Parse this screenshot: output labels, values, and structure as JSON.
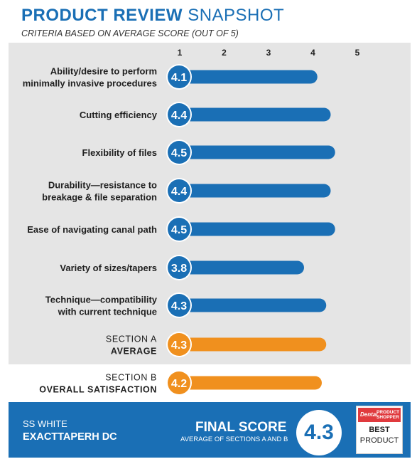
{
  "header": {
    "title_bold": "PRODUCT REVIEW",
    "title_light": "SNAPSHOT",
    "subtitle": "CRITERIA BASED ON AVERAGE SCORE (OUT OF 5)"
  },
  "chart_data": {
    "type": "bar",
    "orientation": "horizontal",
    "xlim": [
      0,
      5
    ],
    "ticks": [
      "1",
      "2",
      "3",
      "4",
      "5"
    ],
    "rows": [
      {
        "label_lines": [
          "Ability/desire to perform",
          "minimally invasive procedures"
        ],
        "value": 4.1,
        "value_label": "4.1",
        "group": "criteria"
      },
      {
        "label_lines": [
          "Cutting efficiency"
        ],
        "value": 4.4,
        "value_label": "4.4",
        "group": "criteria"
      },
      {
        "label_lines": [
          "Flexibility of files"
        ],
        "value": 4.5,
        "value_label": "4.5",
        "group": "criteria"
      },
      {
        "label_lines": [
          "Durability—resistance to",
          "breakage & file separation"
        ],
        "value": 4.4,
        "value_label": "4.4",
        "group": "criteria"
      },
      {
        "label_lines": [
          "Ease of navigating canal path"
        ],
        "value": 4.5,
        "value_label": "4.5",
        "group": "criteria"
      },
      {
        "label_lines": [
          "Variety of sizes/tapers"
        ],
        "value": 3.8,
        "value_label": "3.8",
        "group": "criteria"
      },
      {
        "label_lines": [
          "Technique—compatibility",
          "with current technique"
        ],
        "value": 4.3,
        "value_label": "4.3",
        "group": "criteria"
      },
      {
        "label_lines": [
          "SECTION A",
          "AVERAGE"
        ],
        "value": 4.3,
        "value_label": "4.3",
        "group": "section"
      },
      {
        "label_lines": [
          "SECTION B",
          "OVERALL SATISFACTION"
        ],
        "value": 4.2,
        "value_label": "4.2",
        "group": "section"
      }
    ],
    "colors": {
      "criteria": "#1a6fb5",
      "section": "#f0901e"
    }
  },
  "footer": {
    "brand_line1": "SS WHITE",
    "brand_line2": "EXACTTAPERH DC",
    "final_label": "FINAL SCORE",
    "final_sub": "AVERAGE OF SECTIONS A AND B",
    "final_value": "4.3"
  },
  "badge": {
    "dental": "Dental",
    "product_shopper": "PRODUCT SHOPPER",
    "best": "BEST",
    "product": "PRODUCT"
  }
}
